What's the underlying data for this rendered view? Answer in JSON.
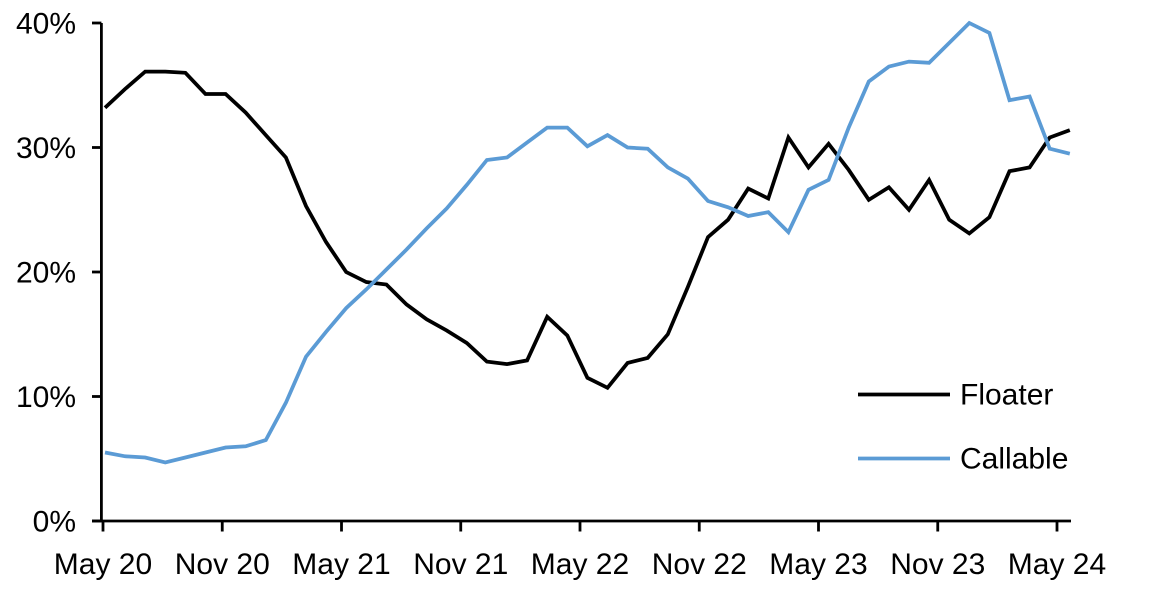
{
  "chart_data": {
    "type": "line",
    "title": "",
    "xlabel": "",
    "ylabel": "",
    "grid": false,
    "background_color": "#FFFFFF",
    "axis_color": "#000000",
    "legend_position": "right-middle",
    "ylim": [
      0,
      40
    ],
    "y_tick_labels": [
      "0%",
      "10%",
      "20%",
      "30%",
      "40%"
    ],
    "x_tick_labels": [
      "May 20",
      "Nov 20",
      "May 21",
      "Nov 21",
      "May 22",
      "Nov 22",
      "May 23",
      "Nov 23",
      "May 24"
    ],
    "x": [
      "2020-05",
      "2020-06",
      "2020-07",
      "2020-08",
      "2020-09",
      "2020-10",
      "2020-11",
      "2020-12",
      "2021-01",
      "2021-02",
      "2021-03",
      "2021-04",
      "2021-05",
      "2021-06",
      "2021-07",
      "2021-08",
      "2021-09",
      "2021-10",
      "2021-11",
      "2021-12",
      "2022-01",
      "2022-02",
      "2022-03",
      "2022-04",
      "2022-05",
      "2022-06",
      "2022-07",
      "2022-08",
      "2022-09",
      "2022-10",
      "2022-11",
      "2022-12",
      "2023-01",
      "2023-02",
      "2023-03",
      "2023-04",
      "2023-05",
      "2023-06",
      "2023-07",
      "2023-08",
      "2023-09",
      "2023-10",
      "2023-11",
      "2023-12",
      "2024-01",
      "2024-02",
      "2024-03",
      "2024-04",
      "2024-05"
    ],
    "series": [
      {
        "name": "Floater",
        "color": "#000000",
        "values": [
          33.2,
          34.7,
          36.1,
          36.1,
          36.0,
          34.3,
          34.3,
          32.8,
          31.0,
          29.2,
          25.3,
          22.4,
          20.0,
          19.2,
          19.0,
          17.4,
          16.2,
          15.3,
          14.3,
          12.8,
          12.6,
          12.9,
          16.4,
          14.9,
          11.5,
          10.7,
          12.7,
          13.1,
          15.0,
          18.8,
          22.8,
          24.2,
          26.7,
          25.9,
          30.8,
          28.4,
          30.3,
          28.2,
          25.8,
          26.8,
          25.0,
          27.4,
          24.2,
          23.1,
          24.4,
          28.1,
          28.4,
          30.8,
          31.4
        ]
      },
      {
        "name": "Callable",
        "color": "#5B9BD5",
        "values": [
          5.5,
          5.2,
          5.1,
          4.7,
          5.1,
          5.5,
          5.9,
          6.0,
          6.5,
          9.5,
          13.2,
          15.2,
          17.1,
          18.6,
          20.2,
          21.8,
          23.5,
          25.1,
          27.0,
          29.0,
          29.2,
          30.4,
          31.6,
          31.6,
          30.1,
          31.0,
          30.0,
          29.9,
          28.4,
          27.5,
          25.7,
          25.2,
          24.5,
          24.8,
          23.2,
          26.6,
          27.4,
          31.6,
          35.3,
          36.5,
          36.9,
          36.8,
          38.4,
          40.0,
          39.2,
          33.8,
          34.1,
          29.9,
          29.5
        ]
      }
    ]
  }
}
